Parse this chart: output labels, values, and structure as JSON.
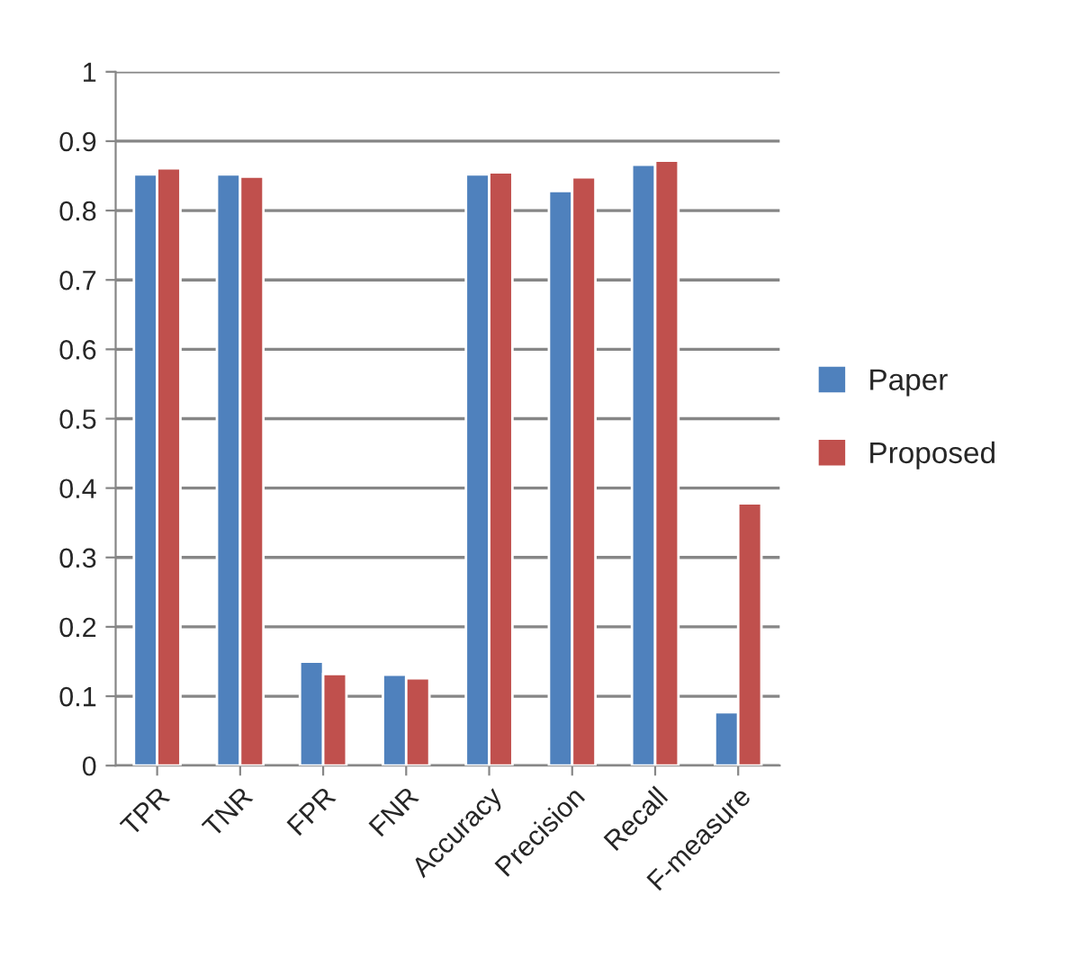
{
  "chart_data": {
    "type": "bar",
    "categories": [
      "TPR",
      "TNR",
      "FPR",
      "FNR",
      "Accuracy",
      "Precision",
      "Recall",
      "F-measure"
    ],
    "series": [
      {
        "name": "Paper",
        "color": "#4f81bd",
        "values": [
          0.852,
          0.852,
          0.15,
          0.131,
          0.852,
          0.828,
          0.866,
          0.077
        ]
      },
      {
        "name": "Proposed",
        "color": "#c0504d",
        "values": [
          0.861,
          0.849,
          0.132,
          0.126,
          0.855,
          0.848,
          0.872,
          0.378
        ]
      }
    ],
    "ylim": [
      0,
      1
    ],
    "yticks": [
      0,
      0.1,
      0.2,
      0.3,
      0.4,
      0.5,
      0.6,
      0.7,
      0.8,
      0.9,
      1
    ],
    "grid": "y",
    "legend": "right"
  }
}
